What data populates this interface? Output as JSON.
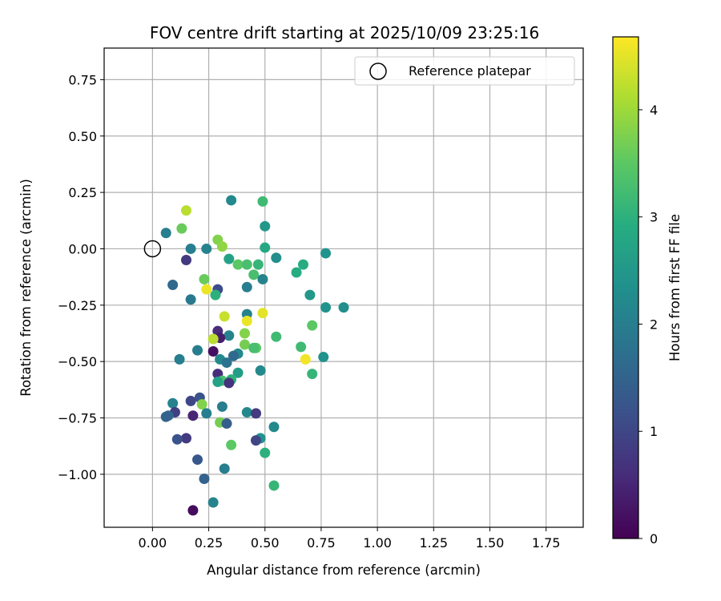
{
  "chart_data": {
    "type": "scatter",
    "title": "FOV centre drift starting at 2025/10/09 23:25:16",
    "xlabel": "Angular distance from reference (arcmin)",
    "ylabel": "Rotation from reference (arcmin)",
    "xlim": [
      -0.215,
      1.915
    ],
    "ylim": [
      -1.235,
      0.89
    ],
    "xticks": [
      0.0,
      0.25,
      0.5,
      0.75,
      1.0,
      1.25,
      1.5,
      1.75
    ],
    "xtick_labels": [
      "0.00",
      "0.25",
      "0.50",
      "0.75",
      "1.00",
      "1.25",
      "1.50",
      "1.75"
    ],
    "yticks": [
      0.75,
      0.5,
      0.25,
      0.0,
      -0.25,
      -0.5,
      -0.75,
      -1.0
    ],
    "ytick_labels": [
      "0.75",
      "0.50",
      "0.25",
      "0.00",
      "−0.25",
      "−0.50",
      "−0.75",
      "−1.00"
    ],
    "grid": true,
    "colormap": "viridis",
    "colorbar": {
      "label": "Hours from first FF file",
      "range": [
        0,
        4.68
      ],
      "ticks": [
        0,
        1,
        2,
        3,
        4
      ],
      "tick_labels": [
        "0",
        "1",
        "2",
        "3",
        "4"
      ]
    },
    "legend": {
      "label": "Reference platepar",
      "position": "top-right"
    },
    "reference_point": {
      "x": 0.0,
      "y": 0.0
    },
    "points": [
      {
        "x": 0.35,
        "y": 0.215,
        "h": 2.2
      },
      {
        "x": 0.49,
        "y": 0.21,
        "h": 3.2
      },
      {
        "x": 0.15,
        "y": 0.17,
        "h": 4.2
      },
      {
        "x": 0.5,
        "y": 0.1,
        "h": 2.5
      },
      {
        "x": 0.13,
        "y": 0.09,
        "h": 3.6
      },
      {
        "x": 0.06,
        "y": 0.07,
        "h": 2.0
      },
      {
        "x": 0.29,
        "y": 0.04,
        "h": 3.8
      },
      {
        "x": 0.31,
        "y": 0.01,
        "h": 3.9
      },
      {
        "x": 0.5,
        "y": 0.005,
        "h": 2.8
      },
      {
        "x": 0.17,
        "y": 0.0,
        "h": 2.0
      },
      {
        "x": 0.24,
        "y": 0.0,
        "h": 2.1
      },
      {
        "x": 0.77,
        "y": -0.02,
        "h": 2.4
      },
      {
        "x": 0.55,
        "y": -0.04,
        "h": 2.3
      },
      {
        "x": 0.34,
        "y": -0.045,
        "h": 2.7
      },
      {
        "x": 0.15,
        "y": -0.05,
        "h": 0.8
      },
      {
        "x": 0.38,
        "y": -0.07,
        "h": 3.5
      },
      {
        "x": 0.42,
        "y": -0.07,
        "h": 3.3
      },
      {
        "x": 0.47,
        "y": -0.07,
        "h": 3.1
      },
      {
        "x": 0.67,
        "y": -0.07,
        "h": 2.9
      },
      {
        "x": 0.64,
        "y": -0.105,
        "h": 2.9
      },
      {
        "x": 0.45,
        "y": -0.115,
        "h": 3.3
      },
      {
        "x": 0.49,
        "y": -0.135,
        "h": 2.1
      },
      {
        "x": 0.23,
        "y": -0.135,
        "h": 3.6
      },
      {
        "x": 0.09,
        "y": -0.16,
        "h": 1.6
      },
      {
        "x": 0.42,
        "y": -0.17,
        "h": 2.0
      },
      {
        "x": 0.24,
        "y": -0.18,
        "h": 4.55
      },
      {
        "x": 0.29,
        "y": -0.18,
        "h": 1.1
      },
      {
        "x": 0.28,
        "y": -0.205,
        "h": 3.0
      },
      {
        "x": 0.7,
        "y": -0.205,
        "h": 2.5
      },
      {
        "x": 0.17,
        "y": -0.225,
        "h": 1.9
      },
      {
        "x": 0.77,
        "y": -0.26,
        "h": 2.4
      },
      {
        "x": 0.85,
        "y": -0.26,
        "h": 2.3
      },
      {
        "x": 0.49,
        "y": -0.285,
        "h": 4.5
      },
      {
        "x": 0.42,
        "y": -0.29,
        "h": 2.1
      },
      {
        "x": 0.32,
        "y": -0.3,
        "h": 4.3
      },
      {
        "x": 0.42,
        "y": -0.32,
        "h": 4.55
      },
      {
        "x": 0.71,
        "y": -0.34,
        "h": 3.5
      },
      {
        "x": 0.29,
        "y": -0.365,
        "h": 0.6
      },
      {
        "x": 0.41,
        "y": -0.375,
        "h": 3.8
      },
      {
        "x": 0.34,
        "y": -0.385,
        "h": 2.1
      },
      {
        "x": 0.3,
        "y": -0.395,
        "h": 0.4
      },
      {
        "x": 0.27,
        "y": -0.4,
        "h": 4.2
      },
      {
        "x": 0.55,
        "y": -0.39,
        "h": 3.2
      },
      {
        "x": 0.41,
        "y": -0.425,
        "h": 3.7
      },
      {
        "x": 0.66,
        "y": -0.435,
        "h": 3.2
      },
      {
        "x": 0.46,
        "y": -0.44,
        "h": 3.5
      },
      {
        "x": 0.45,
        "y": -0.44,
        "h": 3.3
      },
      {
        "x": 0.2,
        "y": -0.45,
        "h": 2.0
      },
      {
        "x": 0.27,
        "y": -0.455,
        "h": 0.2
      },
      {
        "x": 0.38,
        "y": -0.465,
        "h": 2.2
      },
      {
        "x": 0.36,
        "y": -0.475,
        "h": 1.6
      },
      {
        "x": 0.76,
        "y": -0.48,
        "h": 2.4
      },
      {
        "x": 0.68,
        "y": -0.49,
        "h": 4.6
      },
      {
        "x": 0.12,
        "y": -0.49,
        "h": 2.0
      },
      {
        "x": 0.3,
        "y": -0.49,
        "h": 2.2
      },
      {
        "x": 0.33,
        "y": -0.505,
        "h": 1.8
      },
      {
        "x": 0.48,
        "y": -0.54,
        "h": 2.2
      },
      {
        "x": 0.38,
        "y": -0.55,
        "h": 2.6
      },
      {
        "x": 0.29,
        "y": -0.555,
        "h": 0.6
      },
      {
        "x": 0.71,
        "y": -0.555,
        "h": 3.1
      },
      {
        "x": 0.35,
        "y": -0.58,
        "h": 3.0
      },
      {
        "x": 0.31,
        "y": -0.585,
        "h": 3.3
      },
      {
        "x": 0.29,
        "y": -0.59,
        "h": 2.7
      },
      {
        "x": 0.34,
        "y": -0.595,
        "h": 0.7
      },
      {
        "x": 0.21,
        "y": -0.66,
        "h": 1.2
      },
      {
        "x": 0.17,
        "y": -0.675,
        "h": 1.0
      },
      {
        "x": 0.09,
        "y": -0.685,
        "h": 2.1
      },
      {
        "x": 0.22,
        "y": -0.69,
        "h": 3.8
      },
      {
        "x": 0.31,
        "y": -0.7,
        "h": 2.0
      },
      {
        "x": 0.42,
        "y": -0.725,
        "h": 2.2
      },
      {
        "x": 0.46,
        "y": -0.73,
        "h": 0.8
      },
      {
        "x": 0.1,
        "y": -0.725,
        "h": 0.9
      },
      {
        "x": 0.24,
        "y": -0.73,
        "h": 2.0
      },
      {
        "x": 0.07,
        "y": -0.74,
        "h": 1.6
      },
      {
        "x": 0.06,
        "y": -0.745,
        "h": 1.5
      },
      {
        "x": 0.18,
        "y": -0.74,
        "h": 0.5
      },
      {
        "x": 0.3,
        "y": -0.77,
        "h": 3.7
      },
      {
        "x": 0.33,
        "y": -0.775,
        "h": 1.4
      },
      {
        "x": 0.54,
        "y": -0.79,
        "h": 2.2
      },
      {
        "x": 0.48,
        "y": -0.84,
        "h": 2.4
      },
      {
        "x": 0.15,
        "y": -0.84,
        "h": 0.8
      },
      {
        "x": 0.11,
        "y": -0.845,
        "h": 1.2
      },
      {
        "x": 0.46,
        "y": -0.85,
        "h": 1.0
      },
      {
        "x": 0.35,
        "y": -0.87,
        "h": 3.5
      },
      {
        "x": 0.5,
        "y": -0.905,
        "h": 3.0
      },
      {
        "x": 0.2,
        "y": -0.935,
        "h": 1.3
      },
      {
        "x": 0.32,
        "y": -0.975,
        "h": 2.0
      },
      {
        "x": 0.23,
        "y": -1.02,
        "h": 1.5
      },
      {
        "x": 0.54,
        "y": -1.05,
        "h": 3.1
      },
      {
        "x": 0.27,
        "y": -1.125,
        "h": 2.1
      },
      {
        "x": 0.18,
        "y": -1.16,
        "h": 0.15
      }
    ]
  }
}
